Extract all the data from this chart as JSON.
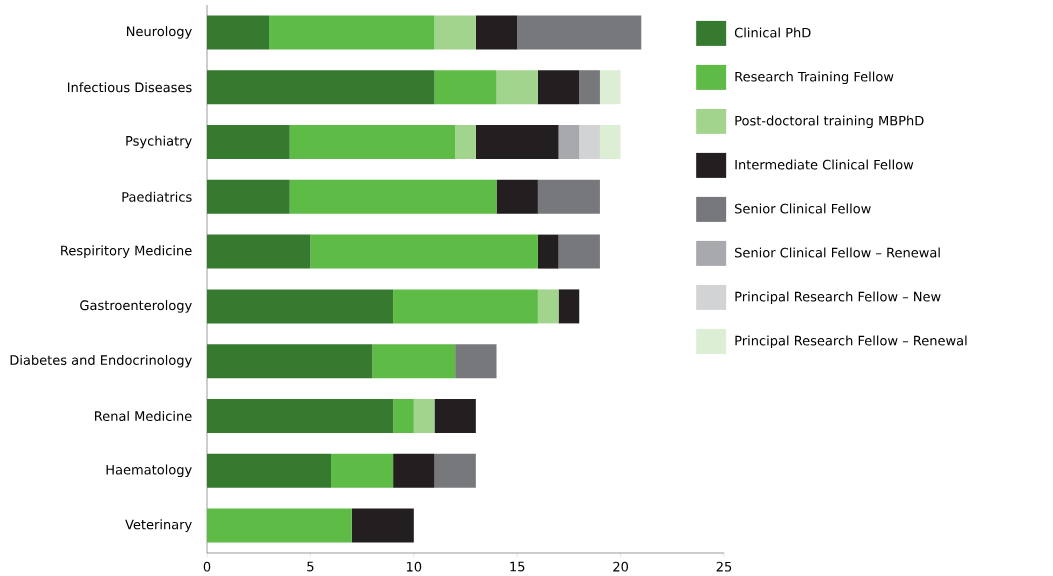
{
  "chart_data": {
    "type": "bar",
    "orientation": "horizontal",
    "stacked": true,
    "categories": [
      "Neurology",
      "Infectious Diseases",
      "Psychiatry",
      "Paediatrics",
      "Respiritory Medicine",
      "Gastroenterology",
      "Diabetes and Endocrinology",
      "Renal Medicine",
      "Haematology",
      "Veterinary"
    ],
    "series": [
      {
        "name": "Clinical PhD",
        "color": "#357a2e",
        "values": [
          3,
          11,
          4,
          4,
          5,
          9,
          8,
          9,
          6,
          0
        ]
      },
      {
        "name": "Research Training Fellow",
        "color": "#5dbb46",
        "values": [
          8,
          3,
          8,
          10,
          11,
          7,
          4,
          1,
          3,
          7
        ]
      },
      {
        "name": "Post-doctoral training MBPhD",
        "color": "#a3d48e",
        "values": [
          2,
          2,
          1,
          0,
          0,
          1,
          0,
          1,
          0,
          0
        ]
      },
      {
        "name": "Intermediate Clinical Fellow",
        "color": "#231f20",
        "values": [
          2,
          2,
          4,
          2,
          1,
          1,
          0,
          2,
          2,
          3
        ]
      },
      {
        "name": "Senior Clinical Fellow",
        "color": "#77787b",
        "values": [
          6,
          1,
          0,
          3,
          2,
          0,
          2,
          0,
          2,
          0
        ]
      },
      {
        "name": "Senior Clinical Fellow – Renewal",
        "color": "#a7a9ac",
        "values": [
          0,
          0,
          1,
          0,
          0,
          0,
          0,
          0,
          0,
          0
        ]
      },
      {
        "name": "Principal Research Fellow – New",
        "color": "#d1d3d4",
        "values": [
          0,
          0,
          1,
          0,
          0,
          0,
          0,
          0,
          0,
          0
        ]
      },
      {
        "name": "Principal Research Fellow – Renewal",
        "color": "#dcefd5",
        "values": [
          0,
          1,
          1,
          0,
          0,
          0,
          0,
          0,
          0,
          0
        ]
      }
    ],
    "xlim": [
      0,
      25
    ],
    "xticks": [
      0,
      5,
      10,
      15,
      20,
      25
    ],
    "legend": "right"
  }
}
